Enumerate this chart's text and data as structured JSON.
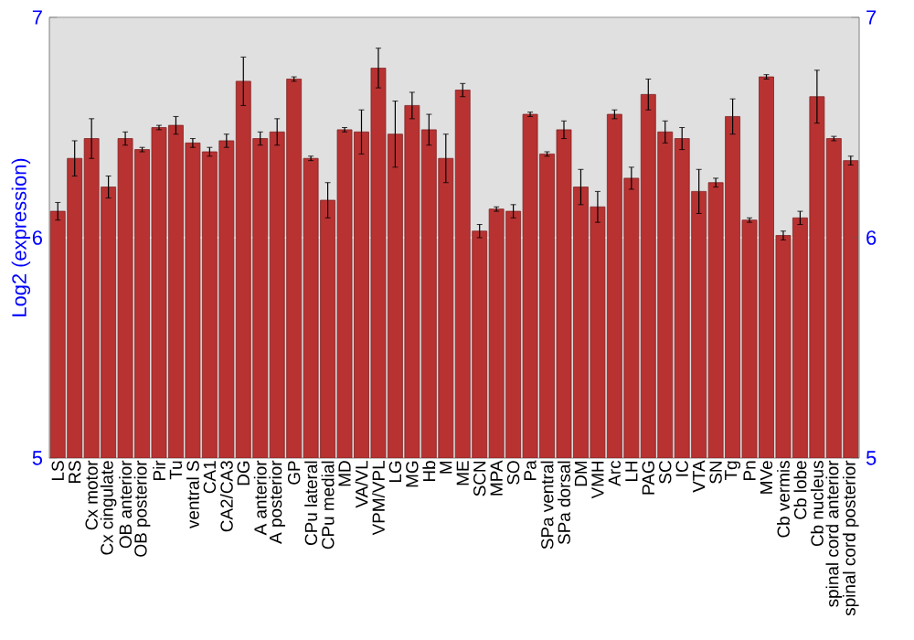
{
  "chart_data": {
    "type": "bar",
    "ylabel": "Log2 (expression)",
    "categories": [
      "LS",
      "RS",
      "Cx motor",
      "Cx cingulate",
      "OB anterior",
      "OB posterior",
      "Pir",
      "Tu",
      "ventral S",
      "CA1",
      "CA2/CA3",
      "DG",
      "A anterior",
      "A posterior",
      "GP",
      "CPu lateral",
      "CPu medial",
      "MD",
      "VA/VL",
      "VPM/VPL",
      "LG",
      "MG",
      "Hb",
      "M",
      "ME",
      "SCN",
      "MPA",
      "SO",
      "Pa",
      "SPa ventral",
      "SPa dorsal",
      "DM",
      "VMH",
      "Arc",
      "LH",
      "PAG",
      "SC",
      "IC",
      "VTA",
      "SN",
      "Tg",
      "Pn",
      "MVe",
      "Cb vermis",
      "Cb lobe",
      "Cb nucleus",
      "spinal cord anterior",
      "spinal cord posterior"
    ],
    "values": [
      6.12,
      6.36,
      6.45,
      6.23,
      6.45,
      6.4,
      6.5,
      6.51,
      6.43,
      6.39,
      6.44,
      6.71,
      6.45,
      6.48,
      6.72,
      6.36,
      6.17,
      6.49,
      6.48,
      6.77,
      6.47,
      6.6,
      6.49,
      6.36,
      6.67,
      6.03,
      6.13,
      6.12,
      6.56,
      6.38,
      6.49,
      6.23,
      6.14,
      6.56,
      6.27,
      6.65,
      6.48,
      6.45,
      6.21,
      6.25,
      6.55,
      6.08,
      6.73,
      6.01,
      6.09,
      6.64,
      6.45,
      6.35
    ],
    "errors": [
      0.04,
      0.08,
      0.09,
      0.05,
      0.03,
      0.01,
      0.01,
      0.04,
      0.02,
      0.02,
      0.03,
      0.11,
      0.03,
      0.06,
      0.01,
      0.01,
      0.08,
      0.01,
      0.1,
      0.09,
      0.15,
      0.06,
      0.07,
      0.11,
      0.03,
      0.03,
      0.01,
      0.03,
      0.01,
      0.01,
      0.04,
      0.08,
      0.07,
      0.02,
      0.05,
      0.07,
      0.05,
      0.05,
      0.1,
      0.02,
      0.08,
      0.01,
      0.01,
      0.02,
      0.03,
      0.12,
      0.01,
      0.02
    ],
    "color": "#b83232",
    "ylim": [
      5,
      7
    ],
    "yticks": [
      5,
      6,
      7
    ],
    "y2lim": [
      5,
      7
    ],
    "y2ticks": [
      5,
      6,
      7
    ],
    "grid": "y"
  }
}
